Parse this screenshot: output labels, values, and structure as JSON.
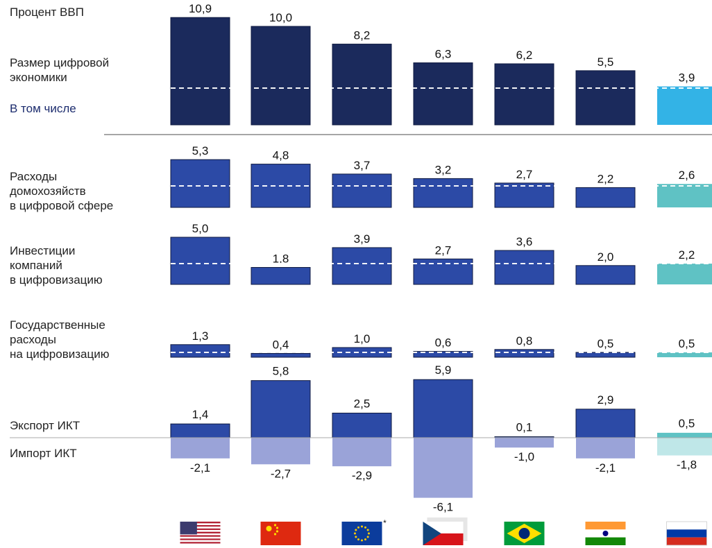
{
  "chart_data": {
    "type": "bar",
    "title": "Процент ВВП",
    "categories": [
      "США",
      "Китай",
      "ЕС",
      "Чехия",
      "Бразилия",
      "Индия",
      "Россия"
    ],
    "flag_icons": [
      "us-flag-icon",
      "china-flag-icon",
      "eu-flag-icon",
      "czech-flag-icon",
      "brazil-flag-icon",
      "india-flag-icon",
      "russia-flag-icon"
    ],
    "flag_note": "*",
    "panels": [
      {
        "id": "size",
        "label": "Размер цифровой\nэкономики",
        "values": [
          10.9,
          10.0,
          8.2,
          6.3,
          6.2,
          5.5,
          3.9
        ],
        "labels": [
          "10,9",
          "10,0",
          "8,2",
          "6,3",
          "6,2",
          "5,5",
          "3,9"
        ]
      },
      {
        "id": "households",
        "label": "Расходы\nдомохозяйств\nв цифровой сфере",
        "values": [
          5.3,
          4.8,
          3.7,
          3.2,
          2.7,
          2.2,
          2.6
        ],
        "labels": [
          "5,3",
          "4,8",
          "3,7",
          "3,2",
          "2,7",
          "2,2",
          "2,6"
        ]
      },
      {
        "id": "companies",
        "label": "Инвестиции\nкомпаний\nв цифровизацию",
        "values": [
          5.0,
          1.8,
          3.9,
          2.7,
          3.6,
          2.0,
          2.2
        ],
        "labels": [
          "5,0",
          "1,8",
          "3,9",
          "2,7",
          "3,6",
          "2,0",
          "2,2"
        ]
      },
      {
        "id": "government",
        "label": "Государственные\nрасходы\nна цифровизацию",
        "values": [
          1.3,
          0.4,
          1.0,
          0.6,
          0.8,
          0.5,
          0.5
        ],
        "labels": [
          "1,3",
          "0,4",
          "1,0",
          "0,6",
          "0,8",
          "0,5",
          "0,5"
        ]
      }
    ],
    "including_label": "В том числе",
    "trade": {
      "export_label": "Экспорт ИКТ",
      "import_label": "Импорт ИКТ",
      "export": [
        1.4,
        5.8,
        2.5,
        5.9,
        0.1,
        2.9,
        0.5
      ],
      "export_labels": [
        "1,4",
        "5,8",
        "2,5",
        "5,9",
        "0,1",
        "2,9",
        "0,5"
      ],
      "import": [
        -2.1,
        -2.7,
        -2.9,
        -6.1,
        -1.0,
        -2.1,
        -1.8
      ],
      "import_labels": [
        "-2,1",
        "-2,7",
        "-2,9",
        "-6,1",
        "-1,0",
        "-2,1",
        "-1,8"
      ]
    },
    "colors": {
      "size": "#1b2a5c",
      "blue": "#2c4aa6",
      "import": "#9aa3d8",
      "russia_size": "#33b3e6",
      "russia_teal": "#5fc2c4",
      "russia_import": "#bfe7e8"
    },
    "grid": false,
    "legend": "none"
  }
}
